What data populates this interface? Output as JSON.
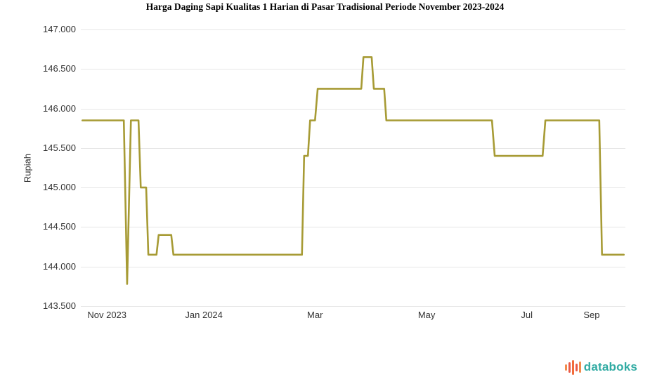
{
  "chart_data": {
    "type": "line",
    "title": "Harga Daging Sapi Kualitas 1 Harian di Pasar Tradisional Periode November 2023-2024",
    "ylabel": "Rupiah",
    "xlabel": "",
    "ylim": [
      143500,
      147000
    ],
    "grid": "horizontal-only",
    "line_color": "#A79B35",
    "grid_color": "#E6E6E6",
    "tick_text_color": "#333333",
    "y_ticks": [
      {
        "label": "147.000",
        "value": 147000
      },
      {
        "label": "146.500",
        "value": 146500
      },
      {
        "label": "146.000",
        "value": 146000
      },
      {
        "label": "145.500",
        "value": 145500
      },
      {
        "label": "145.000",
        "value": 145000
      },
      {
        "label": "144.500",
        "value": 144500
      },
      {
        "label": "144.000",
        "value": 144000
      },
      {
        "label": "143.500",
        "value": 143500
      }
    ],
    "x_ticks": [
      {
        "label": "Nov 2023",
        "pos": 0.048
      },
      {
        "label": "Jan 2024",
        "pos": 0.226
      },
      {
        "label": "Mar",
        "pos": 0.43
      },
      {
        "label": "May",
        "pos": 0.635
      },
      {
        "label": "Jul",
        "pos": 0.819
      },
      {
        "label": "Sep",
        "pos": 0.938
      }
    ],
    "series_name": "Harga Daging Sapi Kualitas 1 (Rupiah)",
    "points": [
      [
        0.003,
        145850
      ],
      [
        0.079,
        145850
      ],
      [
        0.085,
        143780
      ],
      [
        0.092,
        145850
      ],
      [
        0.106,
        145850
      ],
      [
        0.11,
        145000
      ],
      [
        0.12,
        145000
      ],
      [
        0.124,
        144150
      ],
      [
        0.139,
        144150
      ],
      [
        0.143,
        144400
      ],
      [
        0.166,
        144400
      ],
      [
        0.17,
        144150
      ],
      [
        0.406,
        144150
      ],
      [
        0.41,
        145400
      ],
      [
        0.417,
        145400
      ],
      [
        0.421,
        145850
      ],
      [
        0.43,
        145850
      ],
      [
        0.435,
        146250
      ],
      [
        0.515,
        146250
      ],
      [
        0.519,
        146650
      ],
      [
        0.534,
        146650
      ],
      [
        0.538,
        146250
      ],
      [
        0.557,
        146250
      ],
      [
        0.561,
        145850
      ],
      [
        0.755,
        145850
      ],
      [
        0.76,
        145400
      ],
      [
        0.848,
        145400
      ],
      [
        0.853,
        145850
      ],
      [
        0.952,
        145850
      ],
      [
        0.957,
        144150
      ],
      [
        0.997,
        144150
      ]
    ]
  },
  "footer": {
    "logo_text": "databoks",
    "logo_text_color": "#31ABA3",
    "logo_bar_colors": [
      "#F28B4B",
      "#EA5A47",
      "#F26B3A",
      "#EA5A47",
      "#F28B4B"
    ],
    "logo_bar_heights": [
      9,
      15,
      21,
      11,
      16
    ]
  }
}
